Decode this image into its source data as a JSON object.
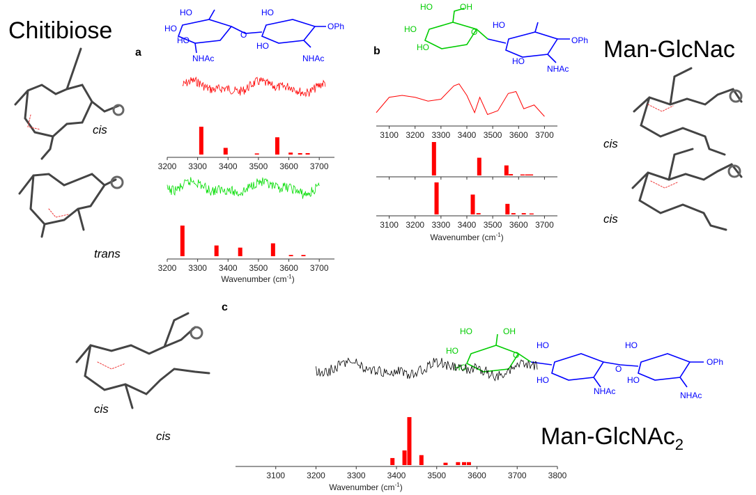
{
  "colors": {
    "spectrum_a": "#ff0000",
    "spectrum_trans": "#00dd00",
    "spectrum_c": "#000000",
    "bar": "#ff0000",
    "glcnac": "#0000ff",
    "man": "#00cc00"
  },
  "labels": {
    "chitibiose": "Chitibiose",
    "man_glcnac": "Man-GlcNac",
    "man_glcnac2_base": "Man-GlcNAc",
    "man_glcnac2_sub": "2",
    "panel_a": "a",
    "panel_b": "b",
    "panel_c": "c",
    "cis": "cis",
    "trans": "trans",
    "wavenumber_a": "Wavenumber (cm",
    "wavenumber_b": "Wavenumber (cm",
    "wavenumber_c": "Wavenumber (cm",
    "wn_sup": "-1",
    "wn_close": ")"
  },
  "chem": {
    "ho": "HO",
    "oh": "OH",
    "o": "O",
    "nhac": "NHAc",
    "oph": "OPh"
  },
  "chart_data": [
    {
      "panel": "a",
      "conformer": "cis",
      "type": "bar",
      "xlabel": "",
      "xlim": [
        3200,
        3750
      ],
      "x_ticks": [
        3200,
        3300,
        3400,
        3500,
        3600,
        3700
      ],
      "x": [
        3312,
        3392,
        3495,
        3562,
        3606,
        3637,
        3662
      ],
      "values": [
        1.0,
        0.24,
        0.04,
        0.62,
        0.07,
        0.05,
        0.05
      ],
      "measured_spectrum": "red trace, 3250-3720 cm-1"
    },
    {
      "panel": "a",
      "conformer": "trans",
      "type": "bar",
      "xlabel": "Wavenumber (cm-1)",
      "xlim": [
        3200,
        3750
      ],
      "x_ticks": [
        3200,
        3300,
        3400,
        3500,
        3600,
        3700
      ],
      "x": [
        3250,
        3362,
        3440,
        3548,
        3607,
        3648
      ],
      "values": [
        1.0,
        0.35,
        0.28,
        0.42,
        0.04,
        0.04
      ],
      "measured_spectrum": "green trace, 3200-3700 cm-1"
    },
    {
      "panel": "b",
      "conformer": "measured",
      "type": "line",
      "xlabel": "",
      "xlim": [
        3050,
        3750
      ],
      "x_ticks": [
        3100,
        3200,
        3300,
        3400,
        3500,
        3600,
        3700
      ],
      "x": [
        3050,
        3100,
        3150,
        3200,
        3250,
        3300,
        3350,
        3370,
        3400,
        3430,
        3450,
        3480,
        3520,
        3560,
        3590,
        3620,
        3660,
        3700
      ],
      "y": [
        0.15,
        0.55,
        0.6,
        0.55,
        0.45,
        0.5,
        0.85,
        0.9,
        0.6,
        0.15,
        0.55,
        0.1,
        0.2,
        0.65,
        0.7,
        0.25,
        0.35,
        0.05
      ]
    },
    {
      "panel": "b",
      "conformer": "cis",
      "type": "bar",
      "xlim": [
        3050,
        3750
      ],
      "x_ticks": [
        3100,
        3200,
        3300,
        3400,
        3500,
        3600,
        3700
      ],
      "x": [
        3273,
        3448,
        3553,
        3570,
        3615,
        3633,
        3648
      ],
      "values": [
        1.0,
        0.53,
        0.3,
        0.04,
        0.03,
        0.03,
        0.03
      ]
    },
    {
      "panel": "b",
      "conformer": "cis",
      "type": "bar",
      "xlabel": "Wavenumber (cm-1)",
      "xlim": [
        3050,
        3750
      ],
      "x_ticks": [
        3100,
        3200,
        3300,
        3400,
        3500,
        3600,
        3700
      ],
      "x": [
        3283,
        3423,
        3445,
        3557,
        3580,
        3620,
        3650
      ],
      "values": [
        1.0,
        0.62,
        0.04,
        0.33,
        0.04,
        0.04,
        0.03
      ]
    },
    {
      "panel": "c",
      "conformer": "cis",
      "type": "bar",
      "xlabel": "Wavenumber (cm-1)",
      "xlim": [
        3000,
        3800
      ],
      "x_ticks": [
        3100,
        3200,
        3300,
        3400,
        3500,
        3600,
        3700,
        3800
      ],
      "x": [
        3390,
        3420,
        3432,
        3462,
        3522,
        3553,
        3568,
        3580
      ],
      "values": [
        0.12,
        0.25,
        0.82,
        0.17,
        0.04,
        0.05,
        0.05,
        0.05
      ],
      "measured_spectrum": "black trace, 3200-3750 cm-1"
    }
  ]
}
